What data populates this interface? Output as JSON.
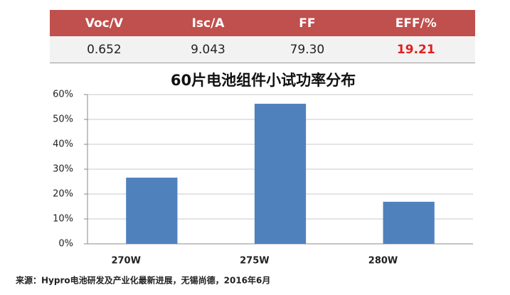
{
  "table": {
    "header": [
      "Voc/V",
      "Isc/A",
      "FF",
      "EFF/%"
    ],
    "rows": [
      [
        "0.652",
        "9.043",
        "79.30",
        "19.21"
      ]
    ]
  },
  "chart_data": {
    "type": "bar",
    "title": "60片电池组件小试功率分布",
    "categories": [
      "270W",
      "275W",
      "280W"
    ],
    "values": [
      26.6,
      56.3,
      16.9
    ],
    "color": "#4f81bd",
    "ylim": [
      0,
      60
    ],
    "yticks": [
      {
        "value": 0,
        "label": "0%"
      },
      {
        "value": 10,
        "label": "10%"
      },
      {
        "value": 20,
        "label": "20%"
      },
      {
        "value": 30,
        "label": "30%"
      },
      {
        "value": 40,
        "label": "40%"
      },
      {
        "value": 50,
        "label": "50%"
      },
      {
        "value": 60,
        "label": "60%"
      }
    ],
    "grid": true
  },
  "source": "来源：Hypro电池研发及产业化最新进展，无锡尚德，2016年6月"
}
